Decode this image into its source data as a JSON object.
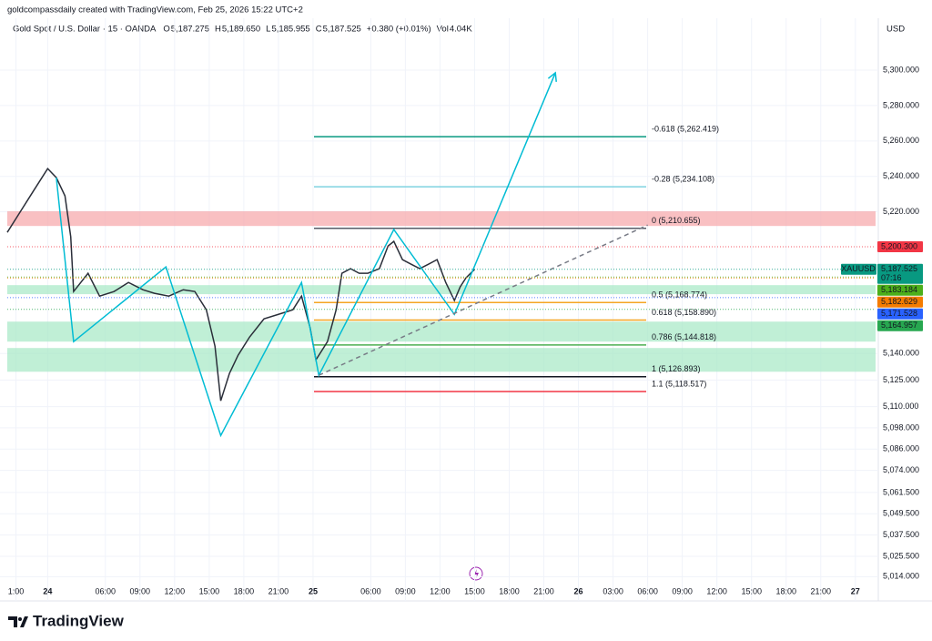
{
  "header": {
    "credit": "goldcompassdaily created with TradingView.com, Feb 25, 2026 15:22 UTC+2",
    "brand": "TradingView"
  },
  "legend": {
    "symbol": "Gold Spot / U.S. Dollar · 15 · OANDA",
    "fields": [
      {
        "key": "O",
        "value": "5,187.275"
      },
      {
        "key": "H",
        "value": "5,189.650"
      },
      {
        "key": "L",
        "value": "5,185.955"
      },
      {
        "key": "C",
        "value": "5,187.525"
      },
      {
        "key": "",
        "value": "+0.380 (+0.01%)"
      },
      {
        "key": "Vol",
        "value": "4.04K"
      }
    ]
  },
  "chart_data": {
    "type": "line",
    "currency": "USD",
    "xlim": [
      -14,
      287
    ],
    "ylim": [
      5008,
      5318
    ],
    "grid": true,
    "xticks": [
      {
        "value": -11,
        "label": "1:00"
      },
      {
        "value": 0,
        "label": "24"
      },
      {
        "value": 20,
        "label": "06:00"
      },
      {
        "value": 32,
        "label": "09:00"
      },
      {
        "value": 44,
        "label": "12:00"
      },
      {
        "value": 56,
        "label": "15:00"
      },
      {
        "value": 68,
        "label": "18:00"
      },
      {
        "value": 80,
        "label": "21:00"
      },
      {
        "value": 92,
        "label": "25"
      },
      {
        "value": 112,
        "label": "06:00"
      },
      {
        "value": 124,
        "label": "09:00"
      },
      {
        "value": 136,
        "label": "12:00"
      },
      {
        "value": 148,
        "label": "15:00"
      },
      {
        "value": 160,
        "label": "18:00"
      },
      {
        "value": 172,
        "label": "21:00"
      },
      {
        "value": 184,
        "label": "26"
      },
      {
        "value": 196,
        "label": "03:00"
      },
      {
        "value": 208,
        "label": "06:00"
      },
      {
        "value": 220,
        "label": "09:00"
      },
      {
        "value": 232,
        "label": "12:00"
      },
      {
        "value": 244,
        "label": "15:00"
      },
      {
        "value": 256,
        "label": "18:00"
      },
      {
        "value": 268,
        "label": "21:00"
      },
      {
        "value": 280,
        "label": "27"
      }
    ],
    "yticks": [
      {
        "value": 5300,
        "label": "5,300.000"
      },
      {
        "value": 5280,
        "label": "5,280.000"
      },
      {
        "value": 5260,
        "label": "5,260.000"
      },
      {
        "value": 5240,
        "label": "5,240.000"
      },
      {
        "value": 5220,
        "label": "5,220.000"
      },
      {
        "value": 5140,
        "label": "5,140.000"
      },
      {
        "value": 5125,
        "label": "5,125.000"
      },
      {
        "value": 5110,
        "label": "5,110.000"
      },
      {
        "value": 5098,
        "label": "5,098.000"
      },
      {
        "value": 5086,
        "label": "5,086.000"
      },
      {
        "value": 5074,
        "label": "5,074.000"
      },
      {
        "value": 5061.5,
        "label": "5,061.500"
      },
      {
        "value": 5049.5,
        "label": "5,049.500"
      },
      {
        "value": 5037.5,
        "label": "5,037.500"
      },
      {
        "value": 5025.5,
        "label": "5,025.500"
      },
      {
        "value": 5014,
        "label": "5,014.000"
      }
    ],
    "series": [
      {
        "name": "XAUUSD",
        "color": "#2a2e39",
        "x": [
          -14,
          -10,
          -5,
          0,
          3,
          6,
          8,
          9,
          14,
          18,
          23,
          28,
          33,
          37,
          42,
          47,
          51,
          55,
          58,
          60,
          63,
          66,
          70,
          75,
          80,
          85,
          88,
          91,
          93,
          97,
          100,
          102,
          105,
          108,
          111,
          115,
          118,
          120,
          123,
          126,
          129,
          132,
          135,
          138,
          141,
          143,
          145,
          148
        ],
        "values": [
          5208.4,
          5218.7,
          5231.6,
          5244.4,
          5239.3,
          5229,
          5205.9,
          5175,
          5185.3,
          5172.4,
          5175,
          5180.1,
          5176,
          5174,
          5172.4,
          5176,
          5175,
          5164.7,
          5144.1,
          5113.3,
          5128.7,
          5139,
          5149.3,
          5159.6,
          5162.1,
          5164.7,
          5172.4,
          5154.4,
          5136.4,
          5146.7,
          5164.7,
          5185.3,
          5187.9,
          5185.3,
          5185.3,
          5187.9,
          5200.7,
          5203.3,
          5193,
          5190.4,
          5187.9,
          5190.4,
          5193,
          5180.1,
          5169.9,
          5177.6,
          5182.7,
          5187.525
        ]
      },
      {
        "color": "#00bcd4",
        "x": [
          3,
          9,
          41,
          60,
          88,
          94,
          120,
          141,
          176
        ],
        "values": [
          5239.3,
          5146.7,
          5188.9,
          5093.7,
          5180.1,
          5127.7,
          5210,
          5162.1,
          5298.5
        ]
      },
      {
        "color": "#787b86",
        "dash": true,
        "x": [
          94,
          208
        ],
        "values": [
          5127.7,
          5212.5
        ]
      }
    ],
    "zones": [
      {
        "low": 5212,
        "high": 5220.3,
        "color": "#f7a5a8"
      },
      {
        "low": 5173.5,
        "high": 5178.6,
        "color": "#a5e8c4"
      },
      {
        "low": 5146.7,
        "high": 5158,
        "color": "#a5e8c4"
      },
      {
        "low": 5129.7,
        "high": 5143.1,
        "color": "#a5e8c4"
      }
    ],
    "fib_levels": [
      {
        "label": "-0.618 (5,262.419)",
        "value": 5262.419,
        "color": "#089981"
      },
      {
        "label": "-0.28 (5,234.108)",
        "value": 5234.108,
        "color": "#7fd3e0"
      },
      {
        "label": "0 (5,210.655)",
        "value": 5210.655,
        "color": "#555a66"
      },
      {
        "label": "0.5 (5,168.774)",
        "value": 5168.774,
        "color": "#f5a623"
      },
      {
        "label": "0.618 (5,158.890)",
        "value": 5158.89,
        "color": "#f5a623"
      },
      {
        "label": "0.786 (5,144.818)",
        "value": 5144.818,
        "color": "#4caf50"
      },
      {
        "label": "1 (5,126.893)",
        "value": 5126.893,
        "color": "#131722"
      },
      {
        "label": "1.1 (5,118.517)",
        "value": 5118.517,
        "color": "#f23645"
      }
    ],
    "price_labels": [
      {
        "value": 5200.3,
        "label": "5,200.300",
        "color": "#f23645"
      },
      {
        "value": 5187.525,
        "label": "5,187.525",
        "color": "#089981",
        "countdown": "07:16"
      },
      {
        "value": 5183.184,
        "label": "5,183.184",
        "color": "#4caf1a"
      },
      {
        "value": 5182.629,
        "label": "5,182.629",
        "color": "#f57c00"
      },
      {
        "value": 5171.528,
        "label": "5,171.528",
        "color": "#2962ff"
      },
      {
        "value": 5164.957,
        "label": "5,164.957",
        "color": "#27a750"
      }
    ]
  }
}
